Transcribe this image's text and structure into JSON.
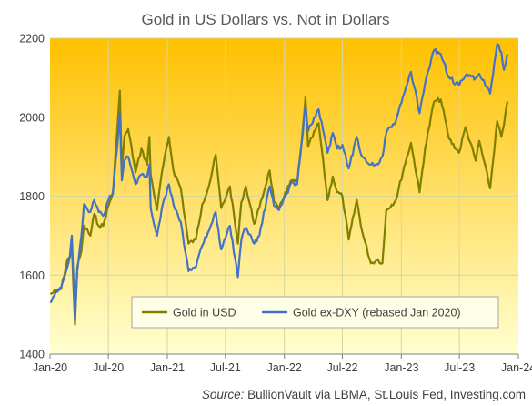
{
  "chart_data": {
    "type": "line",
    "title": "Gold in US Dollars vs. Not in Dollars",
    "xlabel": "",
    "ylabel": "",
    "x_range": [
      "2020-01-01",
      "2024-01-01"
    ],
    "ylim": [
      1400,
      2200
    ],
    "y_ticks": [
      1400,
      1600,
      1800,
      2000,
      2200
    ],
    "x_ticks": [
      {
        "label": "Jan-20",
        "date": "2020-01-01"
      },
      {
        "label": "Jul-20",
        "date": "2020-07-01"
      },
      {
        "label": "Jan-21",
        "date": "2021-01-01"
      },
      {
        "label": "Jul-21",
        "date": "2021-07-01"
      },
      {
        "label": "Jan-22",
        "date": "2022-01-01"
      },
      {
        "label": "Jul-22",
        "date": "2022-07-01"
      },
      {
        "label": "Jan-23",
        "date": "2023-01-01"
      },
      {
        "label": "Jul-23",
        "date": "2023-07-01"
      },
      {
        "label": "Jan-24",
        "date": "2024-01-01"
      }
    ],
    "grid": true,
    "legend_position": "bottom-right",
    "series": [
      {
        "name": "Gold in USD",
        "color": "#7f7f00",
        "points": [
          [
            "2020-01-02",
            1552
          ],
          [
            "2020-01-20",
            1560
          ],
          [
            "2020-02-05",
            1565
          ],
          [
            "2020-02-24",
            1640
          ],
          [
            "2020-03-03",
            1645
          ],
          [
            "2020-03-09",
            1675
          ],
          [
            "2020-03-19",
            1475
          ],
          [
            "2020-03-26",
            1620
          ],
          [
            "2020-04-08",
            1660
          ],
          [
            "2020-04-16",
            1725
          ],
          [
            "2020-05-06",
            1700
          ],
          [
            "2020-05-18",
            1755
          ],
          [
            "2020-06-01",
            1725
          ],
          [
            "2020-06-15",
            1725
          ],
          [
            "2020-07-01",
            1775
          ],
          [
            "2020-07-15",
            1805
          ],
          [
            "2020-07-28",
            1960
          ],
          [
            "2020-08-06",
            2067
          ],
          [
            "2020-08-12",
            1870
          ],
          [
            "2020-08-20",
            1950
          ],
          [
            "2020-09-01",
            1970
          ],
          [
            "2020-09-24",
            1860
          ],
          [
            "2020-10-12",
            1920
          ],
          [
            "2020-10-30",
            1880
          ],
          [
            "2020-11-06",
            1950
          ],
          [
            "2020-11-10",
            1855
          ],
          [
            "2020-11-30",
            1765
          ],
          [
            "2020-12-15",
            1860
          ],
          [
            "2021-01-06",
            1950
          ],
          [
            "2021-01-20",
            1865
          ],
          [
            "2021-02-12",
            1820
          ],
          [
            "2021-03-08",
            1680
          ],
          [
            "2021-03-31",
            1690
          ],
          [
            "2021-04-20",
            1780
          ],
          [
            "2021-05-12",
            1830
          ],
          [
            "2021-06-01",
            1905
          ],
          [
            "2021-06-18",
            1770
          ],
          [
            "2021-07-06",
            1805
          ],
          [
            "2021-07-15",
            1825
          ],
          [
            "2021-08-09",
            1680
          ],
          [
            "2021-08-20",
            1785
          ],
          [
            "2021-09-03",
            1825
          ],
          [
            "2021-09-29",
            1730
          ],
          [
            "2021-10-15",
            1770
          ],
          [
            "2021-11-16",
            1865
          ],
          [
            "2021-11-30",
            1785
          ],
          [
            "2021-12-15",
            1765
          ],
          [
            "2022-01-04",
            1810
          ],
          [
            "2022-01-25",
            1840
          ],
          [
            "2022-02-10",
            1835
          ],
          [
            "2022-02-24",
            1935
          ],
          [
            "2022-03-08",
            2050
          ],
          [
            "2022-03-16",
            1925
          ],
          [
            "2022-04-18",
            1985
          ],
          [
            "2022-05-16",
            1790
          ],
          [
            "2022-06-01",
            1850
          ],
          [
            "2022-06-15",
            1810
          ],
          [
            "2022-07-01",
            1800
          ],
          [
            "2022-07-21",
            1690
          ],
          [
            "2022-08-15",
            1790
          ],
          [
            "2022-09-01",
            1710
          ],
          [
            "2022-09-28",
            1630
          ],
          [
            "2022-10-20",
            1640
          ],
          [
            "2022-11-03",
            1630
          ],
          [
            "2022-11-15",
            1765
          ],
          [
            "2022-12-15",
            1790
          ],
          [
            "2023-01-10",
            1875
          ],
          [
            "2023-01-31",
            1935
          ],
          [
            "2023-02-27",
            1810
          ],
          [
            "2023-03-16",
            1920
          ],
          [
            "2023-04-13",
            2040
          ],
          [
            "2023-05-04",
            2045
          ],
          [
            "2023-05-30",
            1945
          ],
          [
            "2023-06-30",
            1910
          ],
          [
            "2023-07-20",
            1975
          ],
          [
            "2023-08-21",
            1890
          ],
          [
            "2023-09-01",
            1940
          ],
          [
            "2023-10-05",
            1820
          ],
          [
            "2023-10-27",
            1990
          ],
          [
            "2023-11-09",
            1950
          ],
          [
            "2023-11-17",
            1980
          ],
          [
            "2023-11-28",
            2040
          ]
        ]
      },
      {
        "name": "Gold ex-DXY (rebased Jan 2020)",
        "color": "#4472c4",
        "points": [
          [
            "2020-01-02",
            1530
          ],
          [
            "2020-01-20",
            1560
          ],
          [
            "2020-02-05",
            1570
          ],
          [
            "2020-02-24",
            1620
          ],
          [
            "2020-03-03",
            1650
          ],
          [
            "2020-03-09",
            1700
          ],
          [
            "2020-03-19",
            1490
          ],
          [
            "2020-03-26",
            1610
          ],
          [
            "2020-04-08",
            1700
          ],
          [
            "2020-04-16",
            1780
          ],
          [
            "2020-05-06",
            1760
          ],
          [
            "2020-05-18",
            1790
          ],
          [
            "2020-06-01",
            1760
          ],
          [
            "2020-06-15",
            1750
          ],
          [
            "2020-07-01",
            1790
          ],
          [
            "2020-07-15",
            1810
          ],
          [
            "2020-07-28",
            1920
          ],
          [
            "2020-08-06",
            2010
          ],
          [
            "2020-08-12",
            1840
          ],
          [
            "2020-08-20",
            1890
          ],
          [
            "2020-09-01",
            1900
          ],
          [
            "2020-09-24",
            1830
          ],
          [
            "2020-10-12",
            1855
          ],
          [
            "2020-10-30",
            1850
          ],
          [
            "2020-11-06",
            1880
          ],
          [
            "2020-11-10",
            1770
          ],
          [
            "2020-11-30",
            1700
          ],
          [
            "2020-12-15",
            1770
          ],
          [
            "2021-01-06",
            1830
          ],
          [
            "2021-01-20",
            1780
          ],
          [
            "2021-02-12",
            1735
          ],
          [
            "2021-03-08",
            1610
          ],
          [
            "2021-03-31",
            1620
          ],
          [
            "2021-04-20",
            1675
          ],
          [
            "2021-05-12",
            1715
          ],
          [
            "2021-06-01",
            1760
          ],
          [
            "2021-06-18",
            1665
          ],
          [
            "2021-07-06",
            1705
          ],
          [
            "2021-07-15",
            1725
          ],
          [
            "2021-08-09",
            1595
          ],
          [
            "2021-08-20",
            1690
          ],
          [
            "2021-09-03",
            1720
          ],
          [
            "2021-09-29",
            1680
          ],
          [
            "2021-10-15",
            1700
          ],
          [
            "2021-11-16",
            1825
          ],
          [
            "2021-11-30",
            1775
          ],
          [
            "2021-12-15",
            1765
          ],
          [
            "2022-01-04",
            1800
          ],
          [
            "2022-01-25",
            1835
          ],
          [
            "2022-02-10",
            1830
          ],
          [
            "2022-02-24",
            1935
          ],
          [
            "2022-03-08",
            2030
          ],
          [
            "2022-03-16",
            1965
          ],
          [
            "2022-04-18",
            2020
          ],
          [
            "2022-05-16",
            1910
          ],
          [
            "2022-06-01",
            1960
          ],
          [
            "2022-06-15",
            1920
          ],
          [
            "2022-07-01",
            1930
          ],
          [
            "2022-07-21",
            1870
          ],
          [
            "2022-08-15",
            1950
          ],
          [
            "2022-09-01",
            1900
          ],
          [
            "2022-09-28",
            1880
          ],
          [
            "2022-10-20",
            1880
          ],
          [
            "2022-11-03",
            1900
          ],
          [
            "2022-11-15",
            1960
          ],
          [
            "2022-12-15",
            1990
          ],
          [
            "2023-01-10",
            2060
          ],
          [
            "2023-01-31",
            2115
          ],
          [
            "2023-02-27",
            2010
          ],
          [
            "2023-03-16",
            2085
          ],
          [
            "2023-04-13",
            2170
          ],
          [
            "2023-05-04",
            2160
          ],
          [
            "2023-05-30",
            2100
          ],
          [
            "2023-06-30",
            2080
          ],
          [
            "2023-07-20",
            2105
          ],
          [
            "2023-08-21",
            2100
          ],
          [
            "2023-09-01",
            2110
          ],
          [
            "2023-10-05",
            2060
          ],
          [
            "2023-10-27",
            2185
          ],
          [
            "2023-11-09",
            2165
          ],
          [
            "2023-11-17",
            2120
          ],
          [
            "2023-11-28",
            2160
          ]
        ]
      }
    ]
  },
  "source": {
    "label": "Source:",
    "text": " BullionVault via LBMA, St.Louis Fed, Investing.com"
  },
  "colors": {
    "plot_top": "#ffc000",
    "plot_bottom": "#ffffd0",
    "grid": "#d6d6a0"
  }
}
